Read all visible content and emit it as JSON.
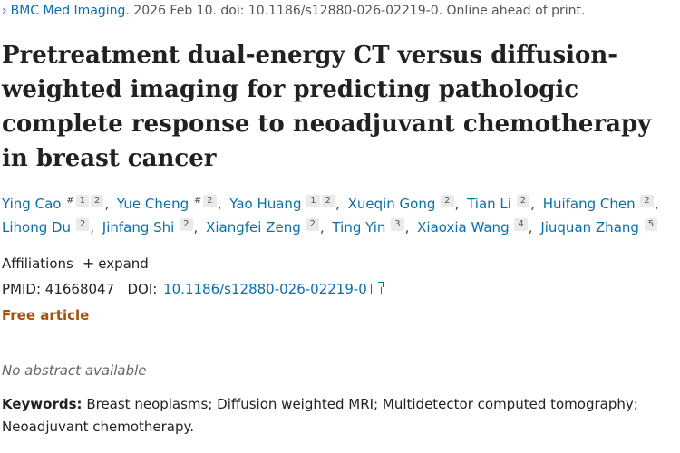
{
  "citation": {
    "journal": "BMC Med Imaging.",
    "details": " 2026 Feb 10. doi: 10.1186/s12880-026-02219-0. Online ahead of print."
  },
  "title": "Pretreatment dual-energy CT versus diffusion-weighted imaging for predicting pathologic complete response to neoadjuvant chemotherapy in breast cancer",
  "authors": [
    {
      "name": "Ying Cao",
      "marks": [
        "#",
        "1",
        "2"
      ]
    },
    {
      "name": "Yue Cheng",
      "marks": [
        "#",
        "2"
      ]
    },
    {
      "name": "Yao Huang",
      "marks": [
        "1",
        "2"
      ]
    },
    {
      "name": "Xueqin Gong",
      "marks": [
        "2"
      ]
    },
    {
      "name": "Tian Li",
      "marks": [
        "2"
      ]
    },
    {
      "name": "Huifang Chen",
      "marks": [
        "2"
      ]
    },
    {
      "name": "Lihong Du",
      "marks": [
        "2"
      ]
    },
    {
      "name": "Jinfang Shi",
      "marks": [
        "2"
      ]
    },
    {
      "name": "Xiangfei Zeng",
      "marks": [
        "2"
      ]
    },
    {
      "name": "Ting Yin",
      "marks": [
        "3"
      ]
    },
    {
      "name": "Xiaoxia Wang",
      "marks": [
        "4"
      ]
    },
    {
      "name": "Jiuquan Zhang",
      "marks": [
        "5"
      ]
    }
  ],
  "affiliations": {
    "label": "Affiliations",
    "toggle": "expand"
  },
  "ids": {
    "pmid_label": "PMID:",
    "pmid": "41668047",
    "doi_label": "DOI:",
    "doi": "10.1186/s12880-026-02219-0"
  },
  "free_article": "Free article",
  "no_abstract": "No abstract available",
  "keywords": {
    "label": "Keywords:",
    "text": " Breast neoplasms; Diffusion weighted MRI; Multidetector computed tomography; Neoadjuvant chemotherapy."
  },
  "colors": {
    "link": "#0a6fa8",
    "free": "#a0520e"
  },
  "icons": [
    "chevron-right-icon",
    "plus-icon",
    "external-link-icon"
  ]
}
